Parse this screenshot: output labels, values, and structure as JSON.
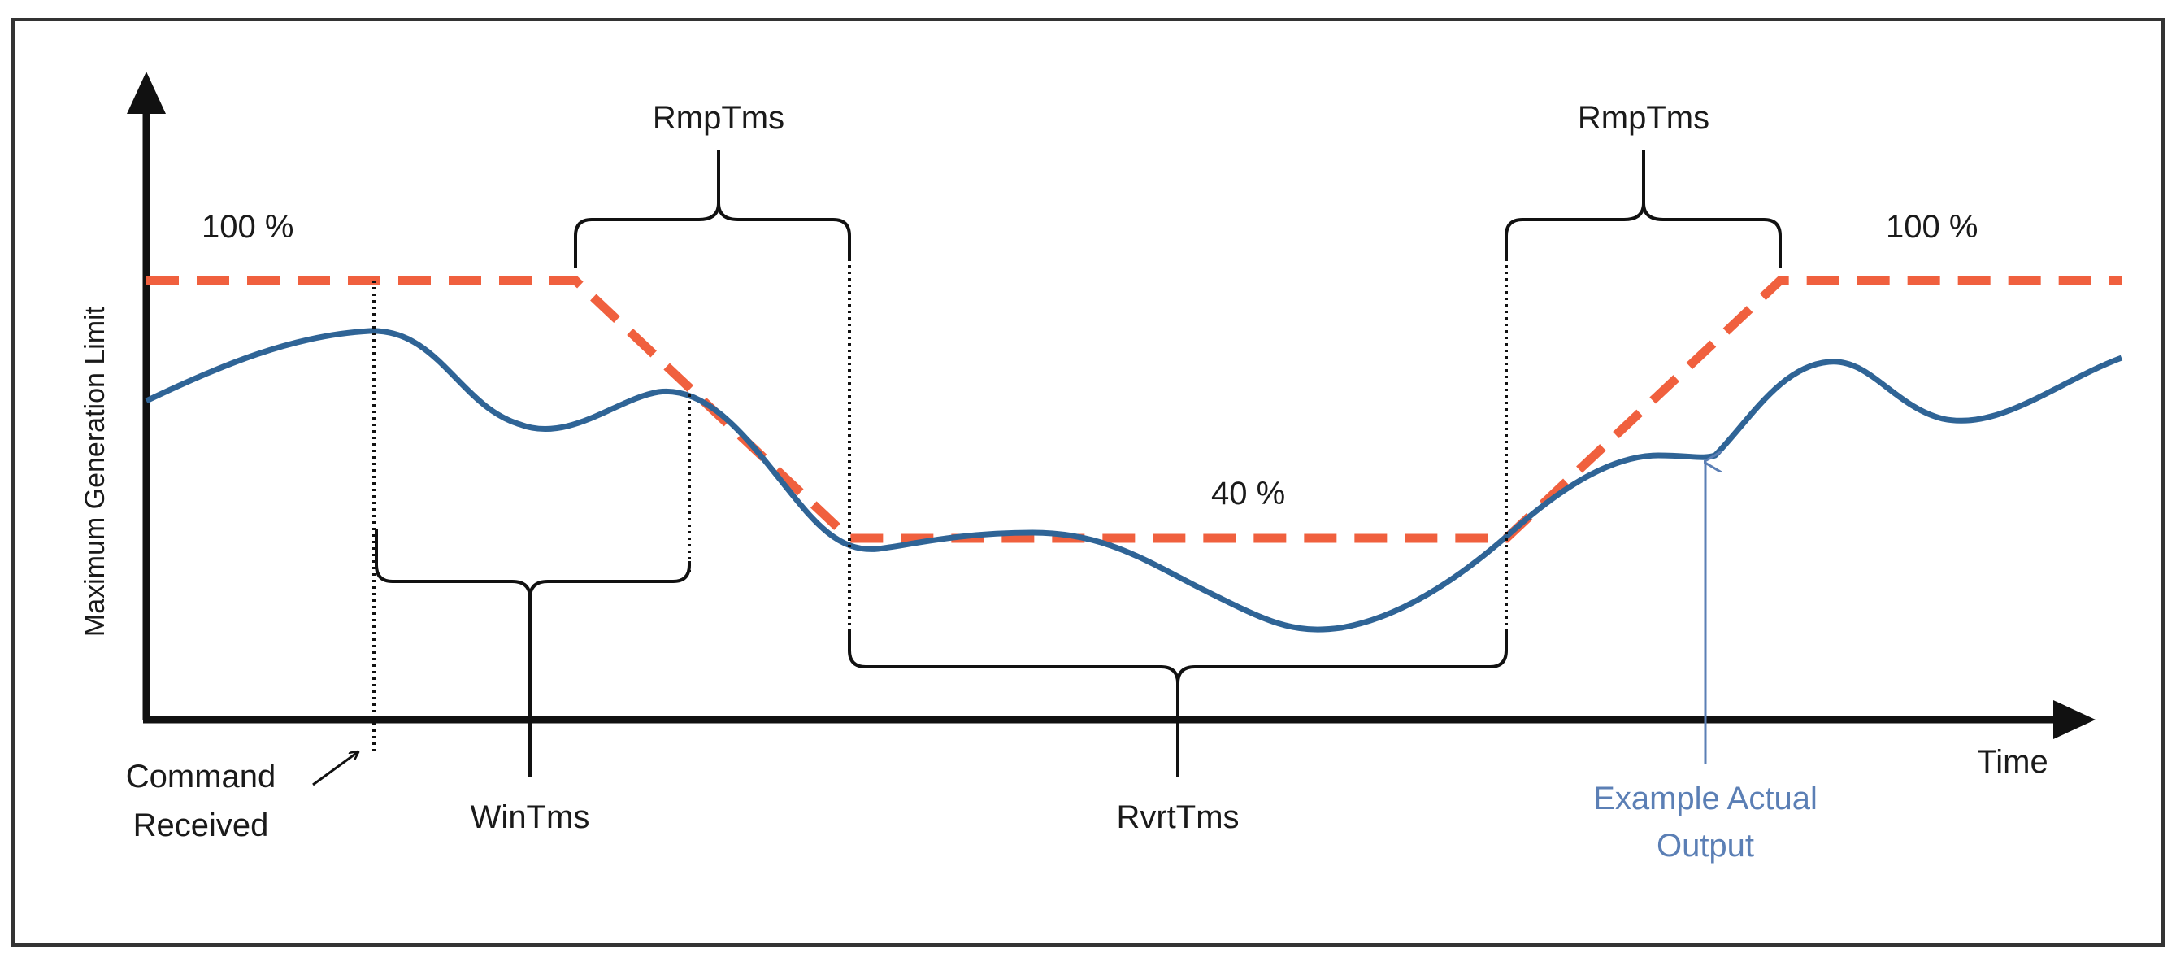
{
  "labels": {
    "y_axis": "Maximum Generation Limit",
    "x_axis": "Time",
    "pct_start": "100 %",
    "pct_end": "100 %",
    "pct_mid": "40 %",
    "ramp_down": "RmpTms",
    "ramp_up": "RmpTms",
    "window": "WinTms",
    "revert": "RvrtTms",
    "command_line1": "Command",
    "command_line2": "Received",
    "actual_line1": "Example Actual",
    "actual_line2": "Output"
  },
  "colors": {
    "limit_line": "#f0603e",
    "actual_output": "#2f6496",
    "annotation_blue": "#5b7fb5",
    "axis": "#111111"
  },
  "chart_data": {
    "type": "line",
    "series": [
      {
        "name": "Maximum Generation Limit",
        "values_percent": [
          100,
          100,
          40,
          40,
          100,
          100
        ]
      },
      {
        "name": "Example Actual Output",
        "style": "smooth curve below the limit"
      }
    ]
  }
}
